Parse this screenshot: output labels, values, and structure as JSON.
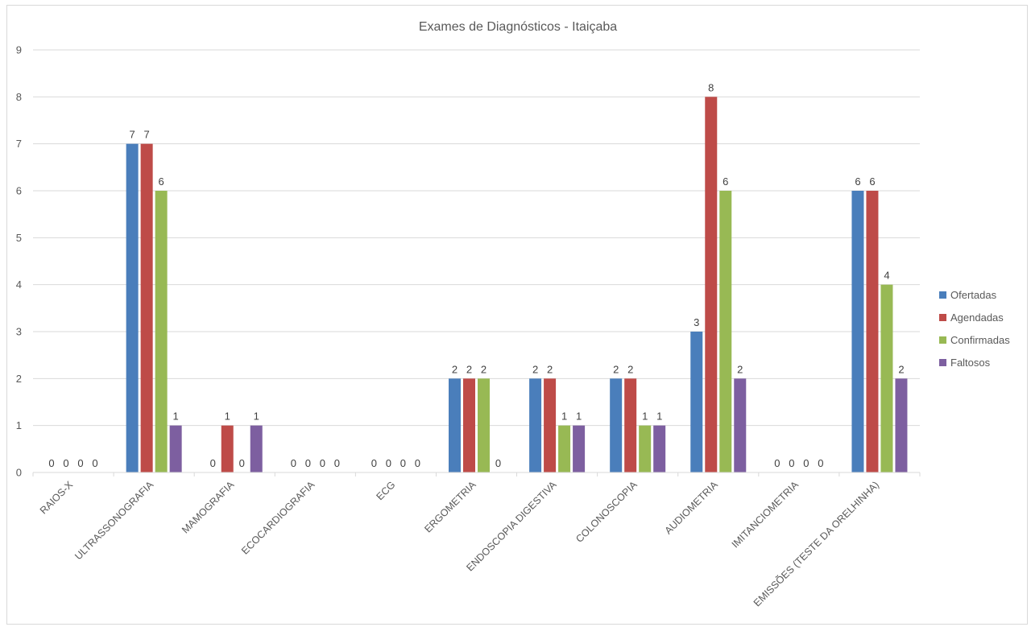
{
  "chart_data": {
    "type": "bar",
    "title": "Exames de Diagnósticos  - Itaiçaba",
    "xlabel": "",
    "ylabel": "",
    "ylim": [
      0,
      9
    ],
    "yticks": [
      0,
      1,
      2,
      3,
      4,
      5,
      6,
      7,
      8,
      9
    ],
    "grid": true,
    "legend_position": "right",
    "categories": [
      "RAIOS-X",
      "ULTRASSONOGRAFIA",
      "MAMOGRAFIA",
      "ECOCARDIOGRAFIA",
      "ECG",
      "ERGOMETRIA",
      "ENDOSCOPIA DIGESTIVA",
      "COLONOSCOPIA",
      "AUDIOMETRIA",
      "IMITANCIOMETRIA",
      "EMISSÕES (TESTE DA ORELHINHA)"
    ],
    "series": [
      {
        "name": "Ofertadas",
        "color": "#4a7ebb",
        "values": [
          0,
          7,
          0,
          0,
          0,
          2,
          2,
          2,
          3,
          0,
          6
        ]
      },
      {
        "name": "Agendadas",
        "color": "#be4b48",
        "values": [
          0,
          7,
          1,
          0,
          0,
          2,
          2,
          2,
          8,
          0,
          6
        ]
      },
      {
        "name": "Confirmadas",
        "color": "#98b954",
        "values": [
          0,
          6,
          0,
          0,
          0,
          2,
          1,
          1,
          6,
          0,
          4
        ]
      },
      {
        "name": "Faltosos",
        "color": "#7d5fa0",
        "values": [
          0,
          1,
          1,
          0,
          0,
          0,
          1,
          1,
          2,
          0,
          2
        ]
      }
    ]
  }
}
